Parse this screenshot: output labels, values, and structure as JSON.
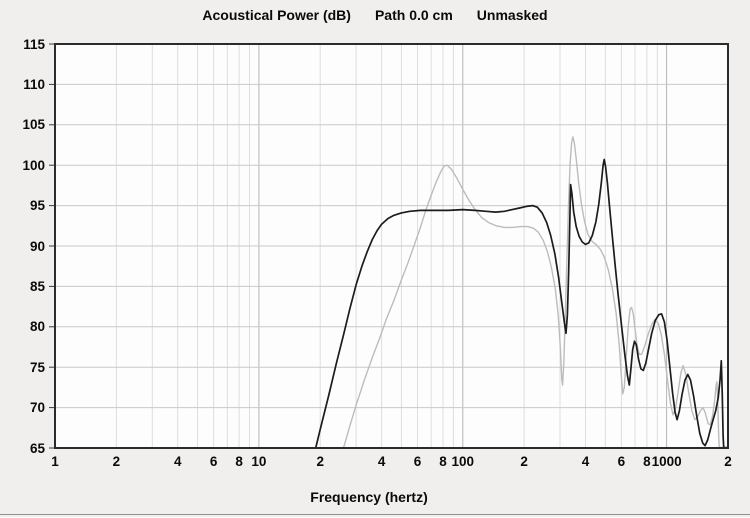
{
  "window": {
    "bottom_divider": true
  },
  "colors": {
    "background": "#f0efed",
    "plot_background": "#fdfdfd",
    "grid_minor": "#dedede",
    "grid_major": "#b5b5b5",
    "grid_horizontal": "#c9c9c9",
    "plot_border": "#2b2b2b",
    "tick_mark": "#3a3a3a",
    "text": "#0a0a0a",
    "curve_black": "#1c1c1c",
    "curve_gray": "#bcbcbc"
  },
  "chart_data": {
    "type": "line",
    "title": "Acoustical Power (dB)   Path 0.0 cm   Unmasked",
    "title_parts": [
      "Acoustical Power (dB)",
      "Path 0.0 cm",
      "Unmasked"
    ],
    "xlabel": "Frequency (hertz)",
    "ylabel": "",
    "x_scale": "log",
    "xlim": [
      1,
      2000
    ],
    "ylim": [
      65,
      115
    ],
    "grid": true,
    "legend": "none",
    "y_ticks": [
      115,
      110,
      105,
      100,
      95,
      90,
      85,
      80,
      75,
      70,
      65
    ],
    "x_ticks": [
      {
        "label": "1",
        "value": 1
      },
      {
        "label": "2",
        "value": 2
      },
      {
        "label": "4",
        "value": 4
      },
      {
        "label": "6",
        "value": 6
      },
      {
        "label": "8",
        "value": 8
      },
      {
        "label": "10",
        "value": 10
      },
      {
        "label": "2",
        "value": 20
      },
      {
        "label": "4",
        "value": 40
      },
      {
        "label": "6",
        "value": 60
      },
      {
        "label": "8",
        "value": 80
      },
      {
        "label": "100",
        "value": 100
      },
      {
        "label": "2",
        "value": 200
      },
      {
        "label": "4",
        "value": 400
      },
      {
        "label": "6",
        "value": 600
      },
      {
        "label": "8",
        "value": 800
      },
      {
        "label": "1000",
        "value": 1000
      },
      {
        "label": "2",
        "value": 2000
      }
    ],
    "series": [
      {
        "name": "gray_curve",
        "color_key": "curve_gray",
        "points": [
          [
            26,
            65
          ],
          [
            28,
            67.8
          ],
          [
            30,
            70.3
          ],
          [
            33,
            73.5
          ],
          [
            36,
            76.2
          ],
          [
            39,
            78.5
          ],
          [
            42,
            80.8
          ],
          [
            46,
            83.3
          ],
          [
            50,
            85.8
          ],
          [
            54,
            88.0
          ],
          [
            58,
            90.2
          ],
          [
            62,
            92.3
          ],
          [
            66,
            94.5
          ],
          [
            70,
            96.3
          ],
          [
            74,
            97.9
          ],
          [
            78,
            99.2
          ],
          [
            81,
            99.9
          ],
          [
            84,
            100.0
          ],
          [
            88,
            99.5
          ],
          [
            94,
            98.3
          ],
          [
            100,
            97.0
          ],
          [
            107,
            95.7
          ],
          [
            115,
            94.5
          ],
          [
            124,
            93.5
          ],
          [
            134,
            92.9
          ],
          [
            146,
            92.5
          ],
          [
            160,
            92.3
          ],
          [
            175,
            92.3
          ],
          [
            192,
            92.4
          ],
          [
            208,
            92.4
          ],
          [
            222,
            92.2
          ],
          [
            235,
            91.7
          ],
          [
            248,
            90.7
          ],
          [
            260,
            89.3
          ],
          [
            272,
            87.4
          ],
          [
            284,
            84.8
          ],
          [
            294,
            81.5
          ],
          [
            301,
            77.5
          ],
          [
            306,
            73.5
          ],
          [
            309,
            72.8
          ],
          [
            313,
            75.5
          ],
          [
            318,
            81.0
          ],
          [
            324,
            88.0
          ],
          [
            330,
            95.0
          ],
          [
            336,
            100.2
          ],
          [
            342,
            102.8
          ],
          [
            347,
            103.5
          ],
          [
            353,
            102.7
          ],
          [
            360,
            100.8
          ],
          [
            370,
            97.9
          ],
          [
            382,
            95.2
          ],
          [
            396,
            93.0
          ],
          [
            412,
            91.4
          ],
          [
            430,
            90.6
          ],
          [
            450,
            90.2
          ],
          [
            472,
            89.6
          ],
          [
            495,
            88.6
          ],
          [
            518,
            87.0
          ],
          [
            542,
            84.7
          ],
          [
            565,
            81.7
          ],
          [
            585,
            77.8
          ],
          [
            600,
            73.8
          ],
          [
            609,
            71.7
          ],
          [
            620,
            72.5
          ],
          [
            633,
            76.0
          ],
          [
            648,
            80.0
          ],
          [
            662,
            82.2
          ],
          [
            673,
            82.4
          ],
          [
            686,
            81.6
          ],
          [
            700,
            79.8
          ],
          [
            716,
            77.8
          ],
          [
            734,
            76.6
          ],
          [
            755,
            76.6
          ],
          [
            780,
            77.6
          ],
          [
            810,
            79.0
          ],
          [
            845,
            80.3
          ],
          [
            878,
            80.9
          ],
          [
            910,
            80.4
          ],
          [
            942,
            79.0
          ],
          [
            975,
            76.6
          ],
          [
            1010,
            73.4
          ],
          [
            1045,
            70.5
          ],
          [
            1075,
            69.1
          ],
          [
            1105,
            69.9
          ],
          [
            1140,
            72.0
          ],
          [
            1175,
            74.3
          ],
          [
            1205,
            75.2
          ],
          [
            1240,
            74.2
          ],
          [
            1285,
            71.8
          ],
          [
            1330,
            69.6
          ],
          [
            1375,
            68.5
          ],
          [
            1420,
            68.9
          ],
          [
            1465,
            69.6
          ],
          [
            1510,
            70.0
          ],
          [
            1550,
            69.3
          ],
          [
            1600,
            68.0
          ],
          [
            1640,
            67.9
          ],
          [
            1680,
            69.0
          ],
          [
            1720,
            70.8
          ],
          [
            1750,
            72.8
          ],
          [
            1765,
            73.2
          ],
          [
            1782,
            70.5
          ],
          [
            1800,
            66.5
          ],
          [
            1812,
            65.1
          ],
          [
            1860,
            65.05
          ],
          [
            1995,
            65.05
          ]
        ]
      },
      {
        "name": "black_curve",
        "color_key": "curve_black",
        "points": [
          [
            19,
            65
          ],
          [
            20,
            67.3
          ],
          [
            22,
            71.5
          ],
          [
            24,
            75.5
          ],
          [
            26,
            79
          ],
          [
            28,
            82.3
          ],
          [
            30,
            85.2
          ],
          [
            32,
            87.5
          ],
          [
            34,
            89.3
          ],
          [
            36,
            90.8
          ],
          [
            38,
            91.9
          ],
          [
            40,
            92.7
          ],
          [
            43,
            93.4
          ],
          [
            46,
            93.8
          ],
          [
            50,
            94.1
          ],
          [
            55,
            94.3
          ],
          [
            62,
            94.4
          ],
          [
            72,
            94.4
          ],
          [
            85,
            94.4
          ],
          [
            100,
            94.5
          ],
          [
            115,
            94.4
          ],
          [
            130,
            94.3
          ],
          [
            145,
            94.2
          ],
          [
            160,
            94.3
          ],
          [
            175,
            94.5
          ],
          [
            190,
            94.7
          ],
          [
            205,
            94.9
          ],
          [
            220,
            95.0
          ],
          [
            232,
            94.8
          ],
          [
            245,
            94.1
          ],
          [
            258,
            92.9
          ],
          [
            270,
            91.3
          ],
          [
            283,
            89.0
          ],
          [
            295,
            86.2
          ],
          [
            306,
            83.0
          ],
          [
            315,
            80.6
          ],
          [
            321,
            79.2
          ],
          [
            326,
            81.5
          ],
          [
            331,
            87.0
          ],
          [
            335,
            93.0
          ],
          [
            338,
            97.6
          ],
          [
            343,
            96.5
          ],
          [
            350,
            94.2
          ],
          [
            360,
            92.4
          ],
          [
            372,
            91.2
          ],
          [
            386,
            90.5
          ],
          [
            400,
            90.2
          ],
          [
            415,
            90.4
          ],
          [
            432,
            91.3
          ],
          [
            450,
            93.0
          ],
          [
            465,
            95.2
          ],
          [
            478,
            97.8
          ],
          [
            488,
            100.0
          ],
          [
            494,
            100.7
          ],
          [
            502,
            99.8
          ],
          [
            512,
            97.8
          ],
          [
            525,
            94.8
          ],
          [
            540,
            91.5
          ],
          [
            558,
            87.8
          ],
          [
            578,
            84.0
          ],
          [
            600,
            80.3
          ],
          [
            622,
            76.8
          ],
          [
            642,
            74.0
          ],
          [
            656,
            72.8
          ],
          [
            668,
            74.8
          ],
          [
            682,
            77.2
          ],
          [
            696,
            78.2
          ],
          [
            710,
            77.8
          ],
          [
            728,
            76.0
          ],
          [
            748,
            74.8
          ],
          [
            768,
            74.6
          ],
          [
            790,
            75.5
          ],
          [
            815,
            77.2
          ],
          [
            845,
            79.2
          ],
          [
            880,
            80.8
          ],
          [
            915,
            81.5
          ],
          [
            945,
            81.6
          ],
          [
            975,
            80.6
          ],
          [
            1005,
            78.3
          ],
          [
            1035,
            75.2
          ],
          [
            1070,
            71.8
          ],
          [
            1100,
            69.4
          ],
          [
            1125,
            68.5
          ],
          [
            1155,
            69.6
          ],
          [
            1190,
            71.6
          ],
          [
            1230,
            73.4
          ],
          [
            1270,
            74.1
          ],
          [
            1310,
            73.4
          ],
          [
            1355,
            71.5
          ],
          [
            1405,
            69.0
          ],
          [
            1455,
            66.8
          ],
          [
            1505,
            65.6
          ],
          [
            1545,
            65.3
          ],
          [
            1590,
            66.0
          ],
          [
            1640,
            67.3
          ],
          [
            1690,
            68.5
          ],
          [
            1740,
            69.6
          ],
          [
            1790,
            71.2
          ],
          [
            1830,
            73.5
          ],
          [
            1855,
            75.8
          ],
          [
            1875,
            71.5
          ],
          [
            1893,
            66.5
          ],
          [
            1905,
            65.1
          ],
          [
            1945,
            65.05
          ],
          [
            1995,
            65.05
          ]
        ]
      }
    ]
  }
}
